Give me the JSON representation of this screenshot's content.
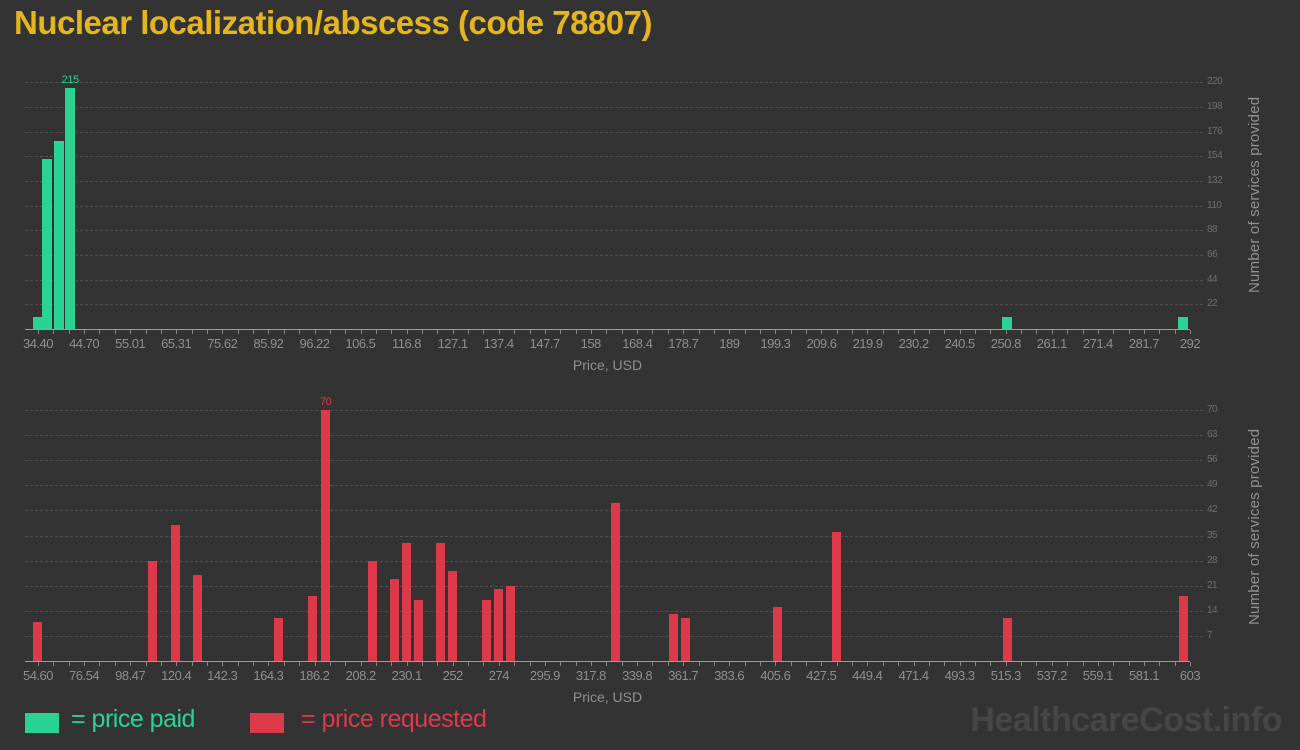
{
  "title": "Nuclear localization/abscess (code 78807)",
  "watermark": "HealthcareCost.info",
  "legend": {
    "paid_label": "= price paid",
    "requested_label": "= price requested"
  },
  "colors": {
    "background": "#333333",
    "title": "#E5B51F",
    "paid": "#28D394",
    "requested": "#DC3A4A",
    "grid": "#515151",
    "axis": "#9C9C9C",
    "x_tick_label": "#8E8E8E",
    "y_tick_label": "#6E6E6E",
    "watermark": "#464646"
  },
  "chart_data": [
    {
      "type": "bar",
      "series_name": "price paid",
      "xlabel": "Price, USD",
      "ylabel": "Number of services provided",
      "x_tick_labels": [
        "34.40",
        "44.70",
        "55.01",
        "65.31",
        "75.62",
        "85.92",
        "96.22",
        "106.5",
        "116.8",
        "127.1",
        "137.4",
        "147.7",
        "158",
        "168.4",
        "178.7",
        "189",
        "199.3",
        "209.6",
        "219.9",
        "230.2",
        "240.5",
        "250.8",
        "261.1",
        "271.4",
        "281.7",
        "292"
      ],
      "x_tick_values": [
        34.4,
        44.7,
        55.01,
        65.31,
        75.62,
        85.92,
        96.22,
        106.5,
        116.8,
        127.1,
        137.4,
        147.7,
        158,
        168.4,
        178.7,
        189,
        199.3,
        209.6,
        219.9,
        230.2,
        240.5,
        250.8,
        261.1,
        271.4,
        281.7,
        292
      ],
      "xlim": [
        34.4,
        292
      ],
      "y_ticks": [
        22,
        44,
        66,
        88,
        110,
        132,
        154,
        176,
        198,
        220
      ],
      "ylim": [
        0,
        240
      ],
      "grid": "horizontal-dashed",
      "bars": [
        {
          "price": 34.5,
          "count": 11
        },
        {
          "price": 36.4,
          "count": 152
        },
        {
          "price": 39.0,
          "count": 168
        },
        {
          "price": 41.6,
          "count": 215
        },
        {
          "price": 251.0,
          "count": 11
        },
        {
          "price": 290.5,
          "count": 11
        }
      ],
      "peak_label": "215"
    },
    {
      "type": "bar",
      "series_name": "price requested",
      "xlabel": "Price, USD",
      "ylabel": "Number of services provided",
      "x_tick_labels": [
        "54.60",
        "76.54",
        "98.47",
        "120.4",
        "142.3",
        "164.3",
        "186.2",
        "208.2",
        "230.1",
        "252",
        "274",
        "295.9",
        "317.8",
        "339.8",
        "361.7",
        "383.6",
        "405.6",
        "427.5",
        "449.4",
        "471.4",
        "493.3",
        "515.3",
        "537.2",
        "559.1",
        "581.1",
        "603"
      ],
      "x_tick_values": [
        54.6,
        76.54,
        98.47,
        120.4,
        142.3,
        164.3,
        186.2,
        208.2,
        230.1,
        252,
        274,
        295.9,
        317.8,
        339.8,
        361.7,
        383.6,
        405.6,
        427.5,
        449.4,
        471.4,
        493.3,
        515.3,
        537.2,
        559.1,
        581.1,
        603
      ],
      "xlim": [
        54.6,
        603
      ],
      "y_ticks": [
        7,
        14,
        21,
        28,
        35,
        42,
        49,
        56,
        63,
        70
      ],
      "ylim": [
        0,
        75
      ],
      "grid": "horizontal-dashed",
      "bars": [
        {
          "price": 54.5,
          "count": 11
        },
        {
          "price": 108.9,
          "count": 28
        },
        {
          "price": 119.8,
          "count": 38
        },
        {
          "price": 130.3,
          "count": 24
        },
        {
          "price": 169.3,
          "count": 12
        },
        {
          "price": 185.3,
          "count": 18
        },
        {
          "price": 191.5,
          "count": 70
        },
        {
          "price": 213.6,
          "count": 28
        },
        {
          "price": 224.1,
          "count": 23
        },
        {
          "price": 230.1,
          "count": 33
        },
        {
          "price": 235.5,
          "count": 17
        },
        {
          "price": 246.2,
          "count": 33
        },
        {
          "price": 251.7,
          "count": 25
        },
        {
          "price": 268.3,
          "count": 17
        },
        {
          "price": 274.0,
          "count": 20
        },
        {
          "price": 279.7,
          "count": 21
        },
        {
          "price": 329.5,
          "count": 44
        },
        {
          "price": 356.9,
          "count": 13
        },
        {
          "price": 362.6,
          "count": 12
        },
        {
          "price": 406.4,
          "count": 15
        },
        {
          "price": 434.5,
          "count": 36
        },
        {
          "price": 516.0,
          "count": 12
        },
        {
          "price": 600.0,
          "count": 18
        }
      ],
      "peak_label": "70"
    }
  ]
}
